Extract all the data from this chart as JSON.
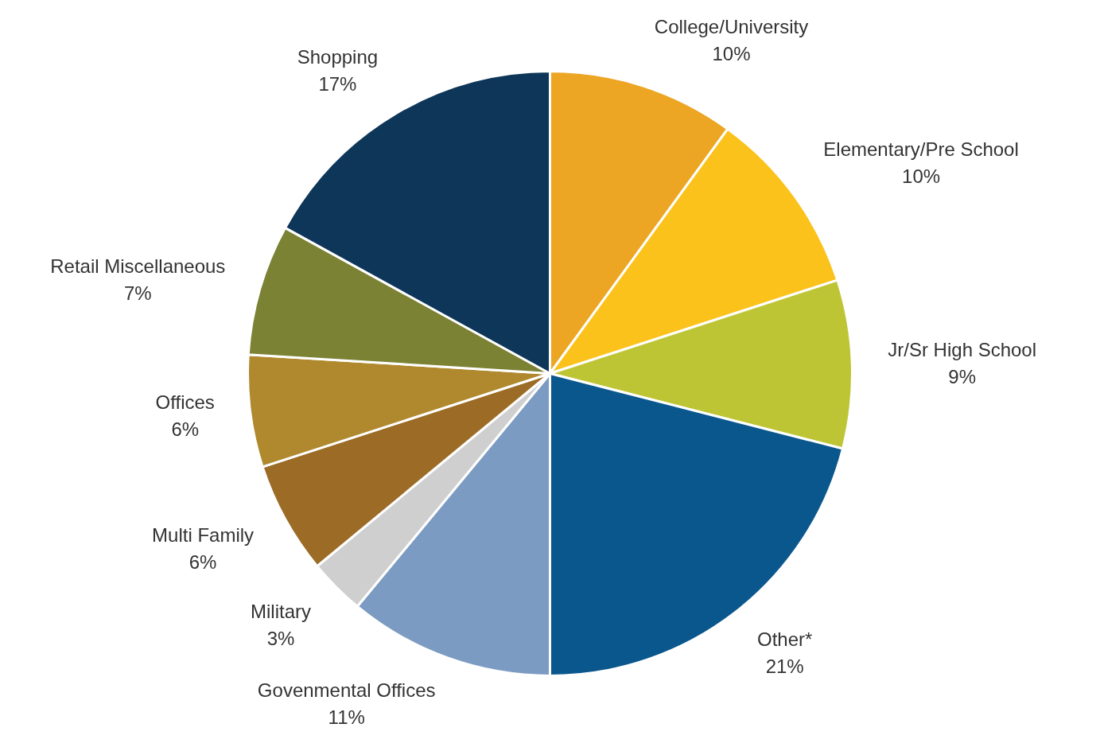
{
  "chart_data": {
    "type": "pie",
    "categories": [
      "College/University",
      "Elementary/Pre School",
      "Jr/Sr High School",
      "Other*",
      "Govenmental Offices",
      "Military",
      "Multi Family",
      "Offices",
      "Retail Miscellaneous",
      "Shopping"
    ],
    "values": [
      10,
      10,
      9,
      21,
      11,
      3,
      6,
      6,
      7,
      17
    ],
    "value_labels": [
      "10%",
      "10%",
      "9%",
      "21%",
      "11%",
      "3%",
      "6%",
      "6%",
      "7%",
      "17%"
    ],
    "colors": [
      "#eca623",
      "#fbc21b",
      "#bec535",
      "#0a578e",
      "#7b9bc2",
      "#cfcfcf",
      "#9c6c27",
      "#b0892e",
      "#7c8234",
      "#0d3659"
    ],
    "legend": false
  }
}
